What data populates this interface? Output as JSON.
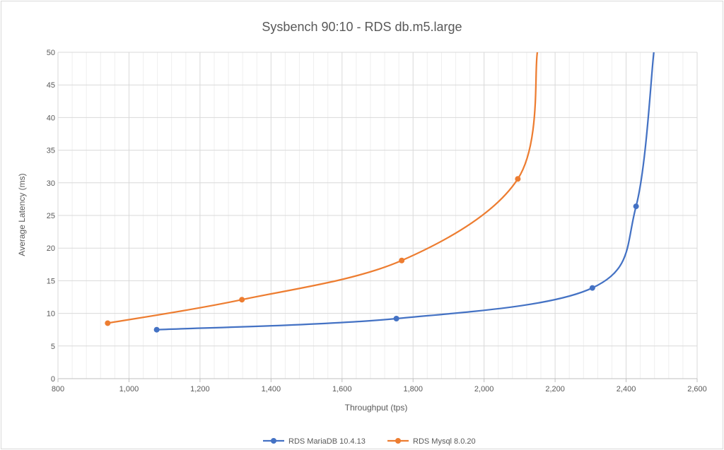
{
  "chart_data": {
    "type": "scatter",
    "title": "Sysbench 90:10 - RDS db.m5.large",
    "xlabel": "Throughput (tps)",
    "ylabel": "Average Latency (ms)",
    "xlim": [
      800,
      2600
    ],
    "ylim": [
      0,
      50
    ],
    "x_ticks": [
      800,
      1000,
      1200,
      1400,
      1600,
      1800,
      2000,
      2200,
      2400,
      2600
    ],
    "x_tick_labels": [
      "800",
      "1,000",
      "1,200",
      "1,400",
      "1,600",
      "1,800",
      "2,000",
      "2,200",
      "2,400",
      "2,600"
    ],
    "y_ticks": [
      0,
      5,
      10,
      15,
      20,
      25,
      30,
      35,
      40,
      45,
      50
    ],
    "y_tick_labels": [
      "0",
      "5",
      "10",
      "15",
      "20",
      "25",
      "30",
      "35",
      "40",
      "45",
      "50"
    ],
    "minor_x_step": 40,
    "grid": true,
    "legend_position": "bottom",
    "series": [
      {
        "name": "RDS MariaDB 10.4.13",
        "color": "#4472c4",
        "points": [
          {
            "x": 1078,
            "y": 7.5
          },
          {
            "x": 1753,
            "y": 9.2
          },
          {
            "x": 2305,
            "y": 13.9
          },
          {
            "x": 2428,
            "y": 26.4
          }
        ],
        "curve_continues_to": {
          "x": 2478,
          "y": 50
        }
      },
      {
        "name": "RDS Mysql 8.0.20",
        "color": "#ed7d31",
        "points": [
          {
            "x": 940,
            "y": 8.5
          },
          {
            "x": 1318,
            "y": 12.1
          },
          {
            "x": 1768,
            "y": 18.1
          },
          {
            "x": 2095,
            "y": 30.6
          }
        ],
        "curve_continues_to": {
          "x": 2150,
          "y": 50
        }
      }
    ]
  }
}
